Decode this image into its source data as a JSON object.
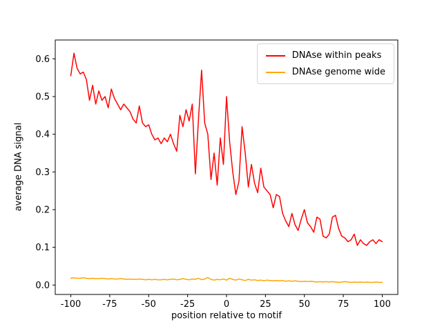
{
  "chart_data": {
    "type": "line",
    "title": "",
    "xlabel": "position relative to motif",
    "ylabel": "average DNA signal",
    "xlim": [
      -110,
      110
    ],
    "ylim": [
      -0.025,
      0.65
    ],
    "xticks": [
      -100,
      -75,
      -50,
      -25,
      0,
      25,
      50,
      75,
      100
    ],
    "yticks": [
      0.0,
      0.1,
      0.2,
      0.3,
      0.4,
      0.5,
      0.6
    ],
    "grid": false,
    "legend_position": "upper right",
    "x": [
      -100,
      -98,
      -96,
      -94,
      -92,
      -90,
      -88,
      -86,
      -84,
      -82,
      -80,
      -78,
      -76,
      -74,
      -72,
      -70,
      -68,
      -66,
      -64,
      -62,
      -60,
      -58,
      -56,
      -54,
      -52,
      -50,
      -48,
      -46,
      -44,
      -42,
      -40,
      -38,
      -36,
      -34,
      -32,
      -30,
      -28,
      -26,
      -24,
      -22,
      -20,
      -18,
      -16,
      -14,
      -12,
      -10,
      -8,
      -6,
      -4,
      -2,
      0,
      2,
      4,
      6,
      8,
      10,
      12,
      14,
      16,
      18,
      20,
      22,
      24,
      26,
      28,
      30,
      32,
      34,
      36,
      38,
      40,
      42,
      44,
      46,
      48,
      50,
      52,
      54,
      56,
      58,
      60,
      62,
      64,
      66,
      68,
      70,
      72,
      74,
      76,
      78,
      80,
      82,
      84,
      86,
      88,
      90,
      92,
      94,
      96,
      98,
      100
    ],
    "series": [
      {
        "name": "DNAse within peaks",
        "color": "#ff0000",
        "values": [
          0.555,
          0.615,
          0.575,
          0.56,
          0.565,
          0.545,
          0.49,
          0.53,
          0.48,
          0.515,
          0.49,
          0.5,
          0.47,
          0.52,
          0.495,
          0.48,
          0.465,
          0.48,
          0.47,
          0.46,
          0.44,
          0.43,
          0.475,
          0.43,
          0.42,
          0.425,
          0.4,
          0.385,
          0.39,
          0.375,
          0.39,
          0.38,
          0.4,
          0.375,
          0.355,
          0.45,
          0.42,
          0.465,
          0.435,
          0.48,
          0.295,
          0.44,
          0.57,
          0.43,
          0.4,
          0.28,
          0.35,
          0.265,
          0.39,
          0.32,
          0.5,
          0.38,
          0.3,
          0.24,
          0.275,
          0.42,
          0.35,
          0.26,
          0.32,
          0.27,
          0.245,
          0.31,
          0.26,
          0.25,
          0.24,
          0.205,
          0.24,
          0.235,
          0.19,
          0.17,
          0.155,
          0.19,
          0.16,
          0.145,
          0.175,
          0.2,
          0.165,
          0.155,
          0.14,
          0.18,
          0.175,
          0.13,
          0.125,
          0.135,
          0.18,
          0.185,
          0.15,
          0.13,
          0.125,
          0.115,
          0.12,
          0.135,
          0.105,
          0.12,
          0.11,
          0.105,
          0.115,
          0.12,
          0.11,
          0.12,
          0.115
        ]
      },
      {
        "name": "DNAse genome wide",
        "color": "#ffa500",
        "values": [
          0.018,
          0.019,
          0.018,
          0.018,
          0.019,
          0.018,
          0.017,
          0.018,
          0.017,
          0.017,
          0.018,
          0.017,
          0.016,
          0.017,
          0.016,
          0.016,
          0.017,
          0.016,
          0.015,
          0.016,
          0.015,
          0.015,
          0.016,
          0.015,
          0.014,
          0.015,
          0.014,
          0.015,
          0.014,
          0.014,
          0.015,
          0.014,
          0.015,
          0.016,
          0.014,
          0.015,
          0.017,
          0.015,
          0.014,
          0.016,
          0.015,
          0.018,
          0.014,
          0.016,
          0.02,
          0.015,
          0.013,
          0.015,
          0.014,
          0.016,
          0.013,
          0.018,
          0.015,
          0.013,
          0.016,
          0.014,
          0.012,
          0.015,
          0.013,
          0.014,
          0.012,
          0.013,
          0.011,
          0.013,
          0.012,
          0.011,
          0.012,
          0.011,
          0.012,
          0.01,
          0.011,
          0.01,
          0.011,
          0.01,
          0.009,
          0.01,
          0.009,
          0.01,
          0.009,
          0.008,
          0.009,
          0.008,
          0.009,
          0.008,
          0.009,
          0.008,
          0.007,
          0.008,
          0.009,
          0.008,
          0.007,
          0.008,
          0.007,
          0.008,
          0.007,
          0.008,
          0.007,
          0.007,
          0.008,
          0.007,
          0.007
        ]
      }
    ]
  }
}
